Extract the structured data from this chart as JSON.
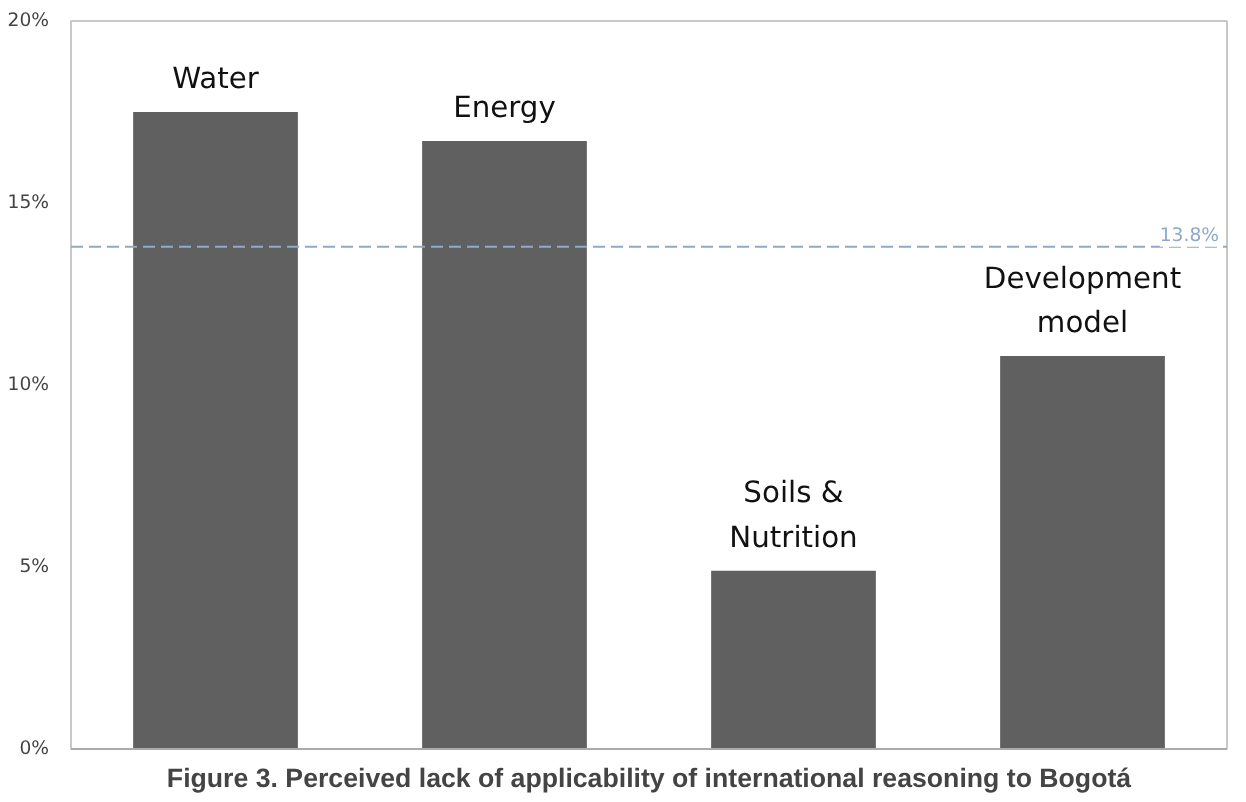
{
  "chart_data": {
    "type": "bar",
    "title": "Figure 3. Perceived lack of applicability of international reasoning to Bogotá",
    "categories": [
      "Water",
      "Energy",
      "Soils &\nNutrition",
      "Development\nmodel"
    ],
    "values": [
      17.5,
      16.7,
      4.9,
      10.8
    ],
    "color": "#606060",
    "ylim": [
      0,
      20
    ],
    "yticks": [
      {
        "value": 0,
        "label": "0%"
      },
      {
        "value": 5,
        "label": "5%"
      },
      {
        "value": 10,
        "label": "10%"
      },
      {
        "value": 15,
        "label": "15%"
      },
      {
        "value": 20,
        "label": "20%"
      }
    ],
    "ref_lines": [
      {
        "axis": "y",
        "value": 13.8,
        "label": "13.8%",
        "color": "#8faac8",
        "line_style": "dashed"
      }
    ],
    "grid": false,
    "tick_labels": "y"
  }
}
